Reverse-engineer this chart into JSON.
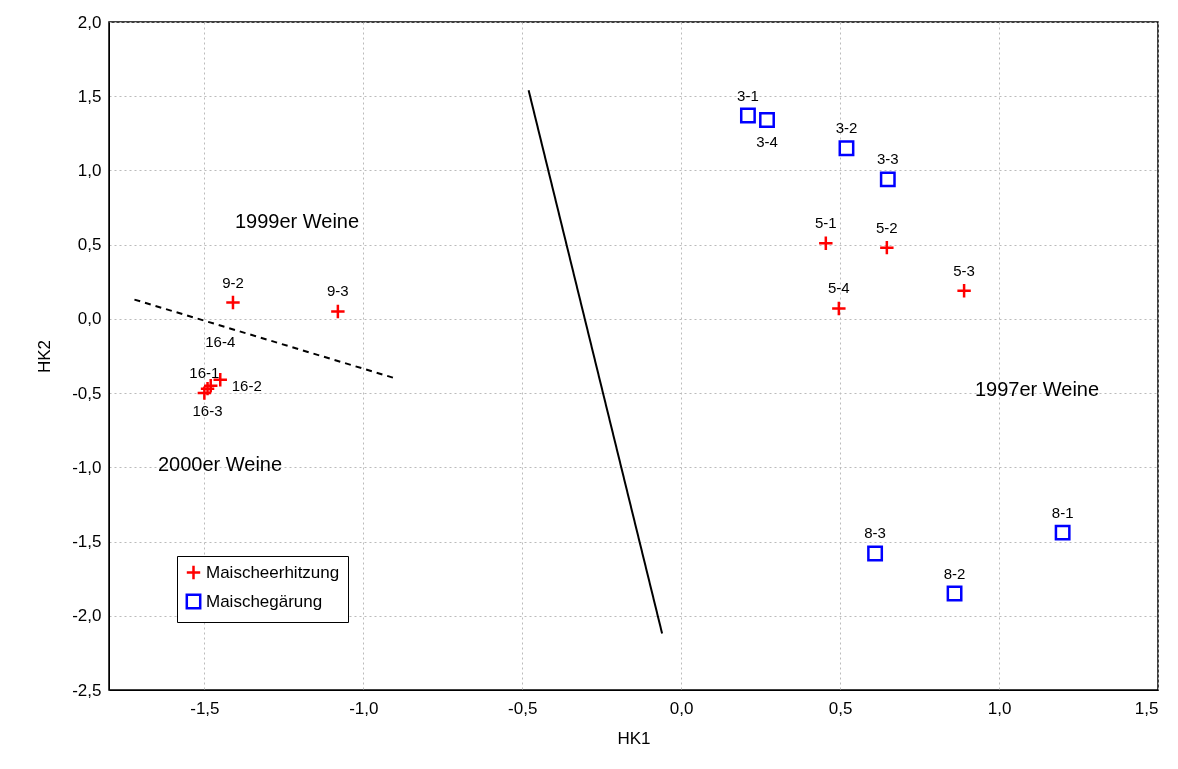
{
  "chart_data": {
    "type": "scatter",
    "xlabel": "HK1",
    "ylabel": "HK2",
    "xlim": [
      -1.8,
      1.5
    ],
    "ylim": [
      -2.5,
      2.0
    ],
    "xticks": [
      {
        "value": -1.5,
        "label": "-1,5"
      },
      {
        "value": -1.0,
        "label": "-1,0"
      },
      {
        "value": -0.5,
        "label": "-0,5"
      },
      {
        "value": 0,
        "label": "0,0"
      },
      {
        "value": 0.5,
        "label": "0,5"
      },
      {
        "value": 1.0,
        "label": "1,0"
      },
      {
        "value": 1.5,
        "label": "1,5"
      }
    ],
    "yticks": [
      {
        "value": -2.5,
        "label": "-2,5"
      },
      {
        "value": -2.0,
        "label": "-2,0"
      },
      {
        "value": -1.5,
        "label": "-1,5"
      },
      {
        "value": -1.0,
        "label": "-1,0"
      },
      {
        "value": -0.5,
        "label": "-0,5"
      },
      {
        "value": 0,
        "label": "0,0"
      },
      {
        "value": 0.5,
        "label": "0,5"
      },
      {
        "value": 1.0,
        "label": "1,0"
      },
      {
        "value": 1.5,
        "label": "1,5"
      },
      {
        "value": 2.0,
        "label": "2,0"
      }
    ],
    "grid": true,
    "legend": "bottom left",
    "series": [
      {
        "name": "Maischeerhitzung",
        "marker": "cross",
        "color": "#ff0000",
        "x": [
          -1.41,
          -1.08,
          -1.5,
          -1.49,
          -1.48,
          -1.45,
          0.455,
          0.647,
          0.89,
          0.496
        ],
        "values": [
          0.11,
          0.05,
          -0.5,
          -0.47,
          -0.45,
          -0.41,
          0.51,
          0.48,
          0.19,
          0.07
        ],
        "value_labels": [
          "9-2",
          "9-3",
          "16-1",
          "16-3",
          "16-2",
          "16-4",
          "5-1",
          "5-2",
          "5-3",
          "5-4"
        ]
      },
      {
        "name": "Maischegärung",
        "marker": "square",
        "color": "#0000ff",
        "x": [
          0.21,
          0.27,
          0.52,
          0.65,
          0.61,
          0.86,
          1.2
        ],
        "values": [
          1.37,
          1.34,
          1.15,
          0.94,
          -1.58,
          -1.85,
          -1.44
        ],
        "value_labels": [
          "3-1",
          "3-4",
          "3-2",
          "3-3",
          "8-3",
          "8-2",
          "8-1"
        ]
      },
      {
        "type": "line",
        "line_style": "solid",
        "color": "#000000",
        "x": [
          -0.48,
          -0.06
        ],
        "values": [
          1.54,
          -2.12
        ]
      },
      {
        "type": "line",
        "line_style": "dashed",
        "color": "#000000",
        "x": [
          -1.72,
          -0.9
        ],
        "values": [
          0.13,
          -0.4
        ]
      }
    ],
    "annotations": [
      "1999er Weine",
      "2000er Weine",
      "1997er Weine"
    ]
  }
}
